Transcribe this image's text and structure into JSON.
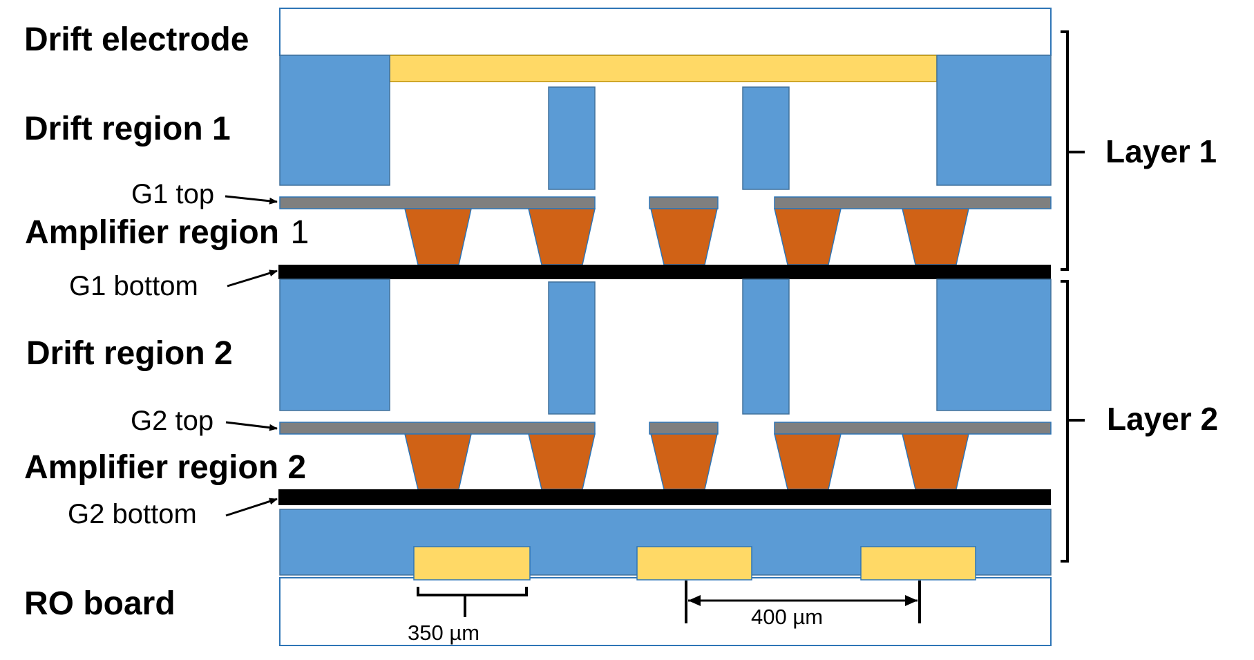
{
  "labels": {
    "drift_electrode": "Drift electrode",
    "drift_region_1": "Drift region 1",
    "g1_top": "G1 top",
    "amplifier_region_1_bold": "Amplifier region",
    "amplifier_region_1_num": "1",
    "g1_bottom": "G1 bottom",
    "drift_region_2": "Drift region 2",
    "g2_top": "G2 top",
    "amplifier_region_2": "Amplifier region 2",
    "g2_bottom": "G2 bottom",
    "ro_board": "RO board",
    "layer_1": "Layer 1",
    "layer_2": "Layer 2",
    "dim_350": "350 µm",
    "dim_400": "400 µm"
  },
  "colors": {
    "support": "#5B9BD5",
    "support_stroke": "#41719C",
    "electrode": "#FFD966",
    "mesh": "#7F7F7F",
    "cone": "#D06216",
    "bottom_electrode": "#000000",
    "frame": "#2E75B6",
    "line": "#000000"
  }
}
